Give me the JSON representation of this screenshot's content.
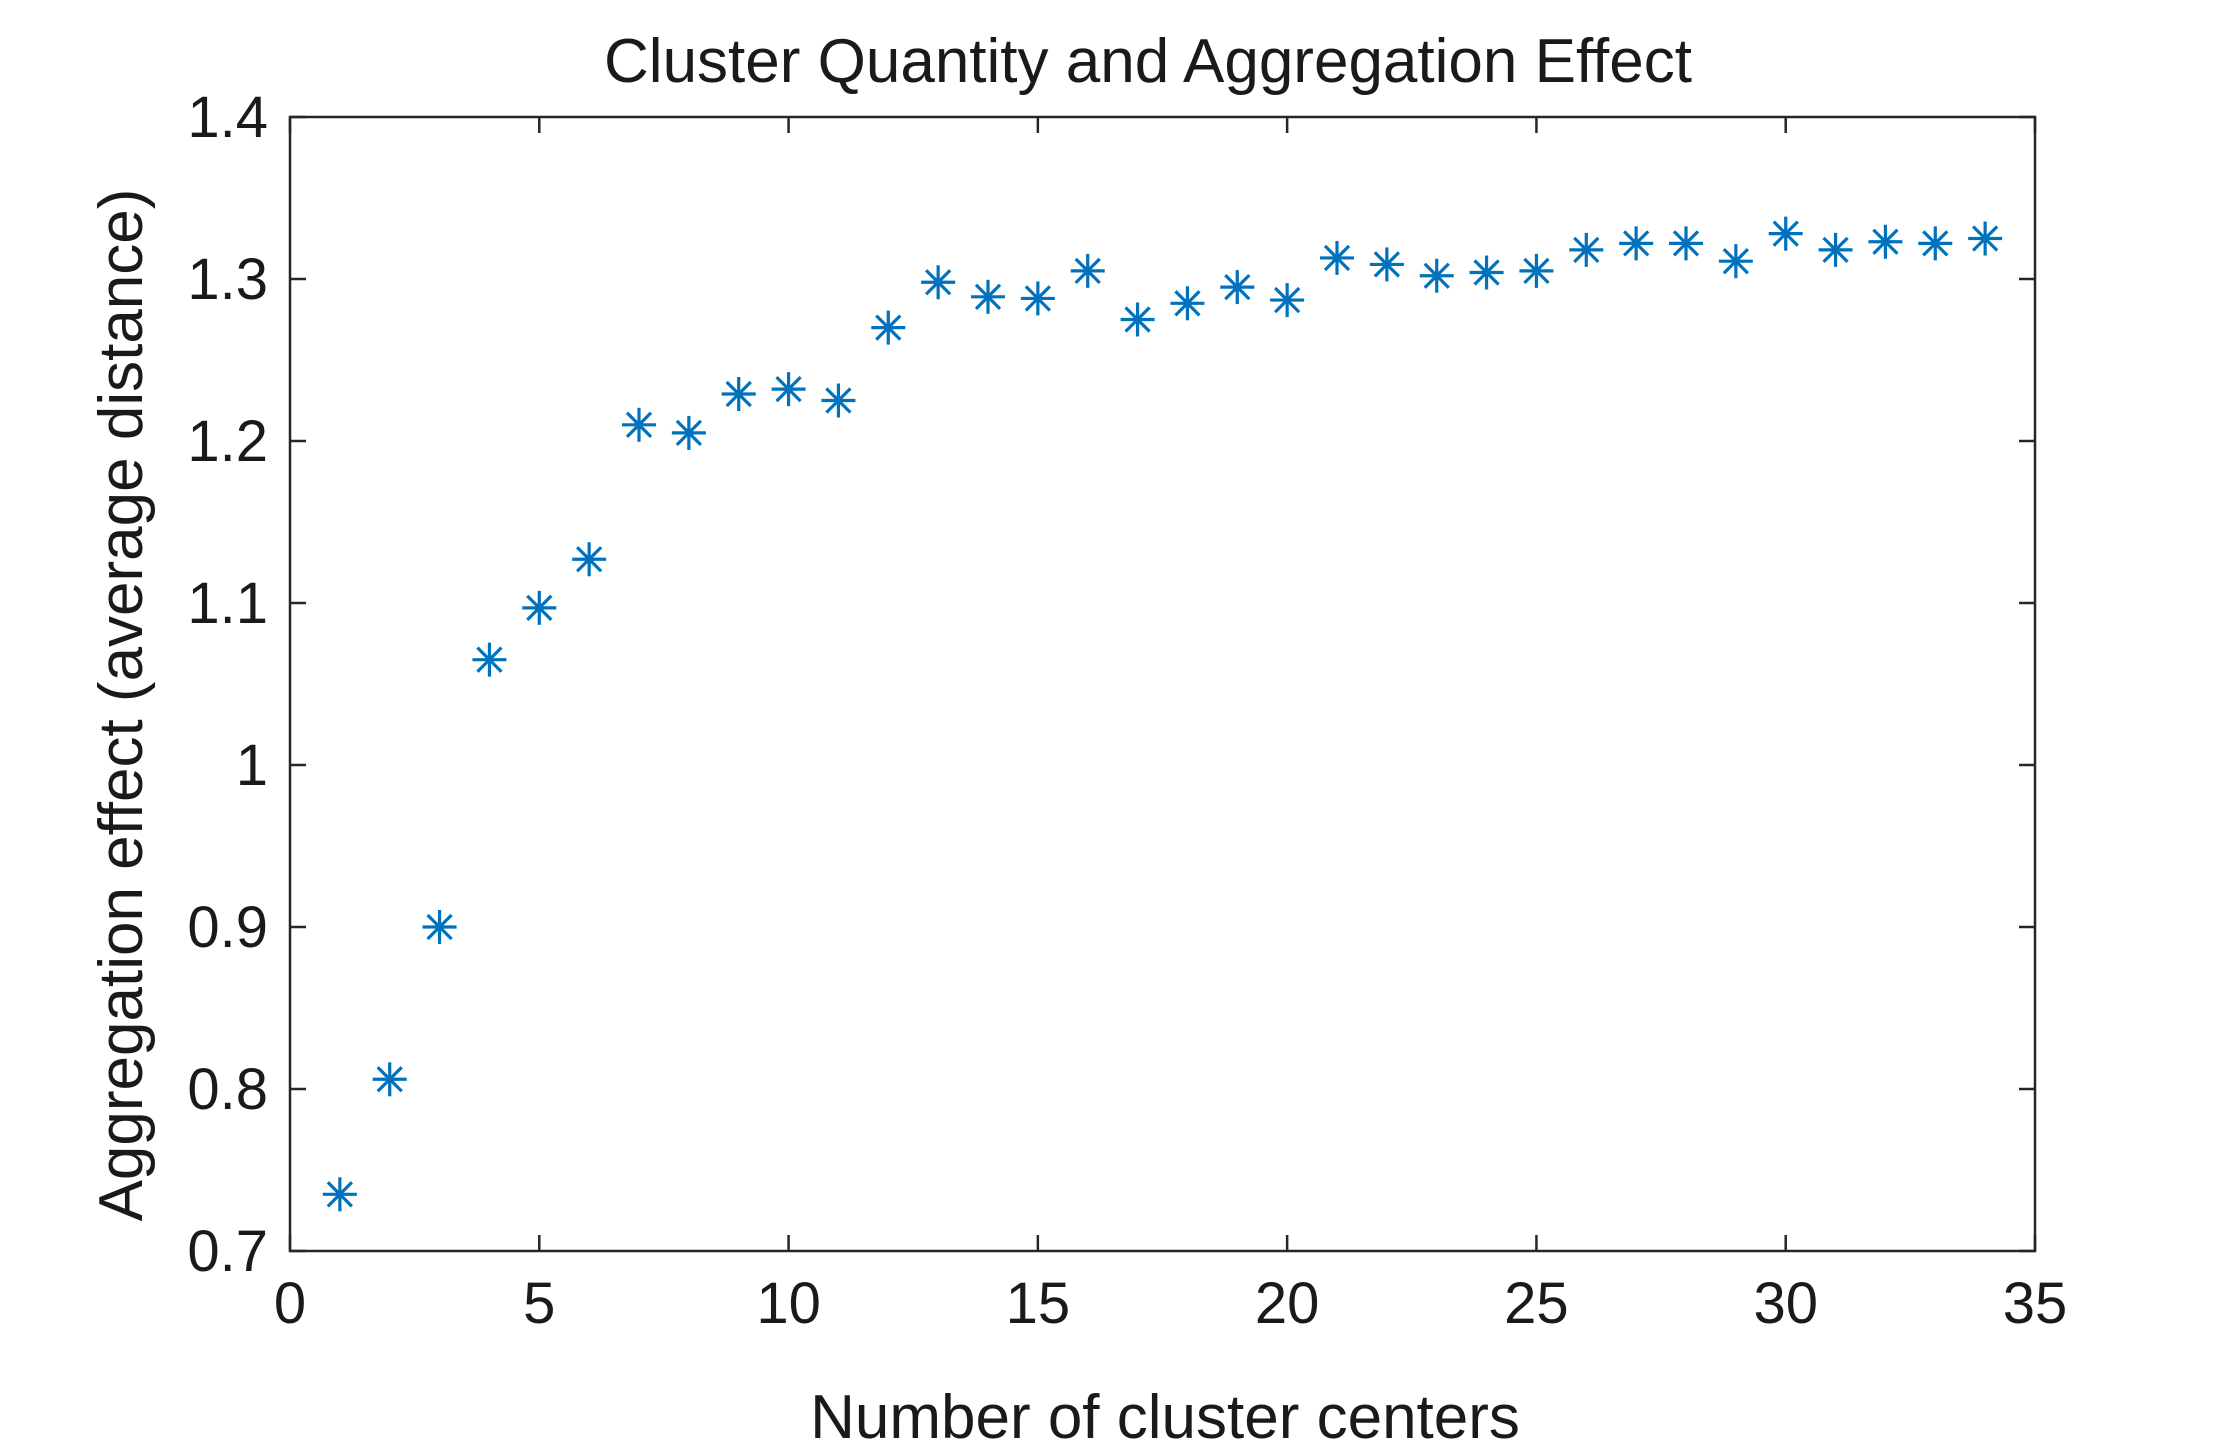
{
  "chart_data": {
    "type": "scatter",
    "title": "Cluster Quantity and Aggregation Effect",
    "xlabel": "Number of cluster centers",
    "ylabel": "Aggregation effect (average distance)",
    "xlim": [
      0,
      35
    ],
    "ylim": [
      0.7,
      1.4
    ],
    "xticks": [
      0,
      5,
      10,
      15,
      20,
      25,
      30,
      35
    ],
    "yticks": [
      0.7,
      0.8,
      0.9,
      1,
      1.1,
      1.2,
      1.3,
      1.4
    ],
    "xtick_labels": [
      "0",
      "5",
      "10",
      "15",
      "20",
      "25",
      "30",
      "35"
    ],
    "ytick_labels": [
      "0.7",
      "0.8",
      "0.9",
      "1",
      "1.1",
      "1.2",
      "1.3",
      "1.4"
    ],
    "grid": false,
    "marker": "asterisk",
    "marker_color": "#0072BD",
    "axis_color": "#262626",
    "x": [
      1,
      2,
      3,
      4,
      5,
      6,
      7,
      8,
      9,
      10,
      11,
      12,
      13,
      14,
      15,
      16,
      17,
      18,
      19,
      20,
      21,
      22,
      23,
      24,
      25,
      26,
      27,
      28,
      29,
      30,
      31,
      32,
      33,
      34
    ],
    "y": [
      0.735,
      0.806,
      0.9,
      1.065,
      1.097,
      1.127,
      1.21,
      1.205,
      1.229,
      1.232,
      1.225,
      1.27,
      1.298,
      1.289,
      1.288,
      1.305,
      1.275,
      1.285,
      1.295,
      1.287,
      1.313,
      1.309,
      1.302,
      1.304,
      1.305,
      1.318,
      1.322,
      1.322,
      1.311,
      1.328,
      1.318,
      1.323,
      1.322,
      1.325
    ]
  }
}
